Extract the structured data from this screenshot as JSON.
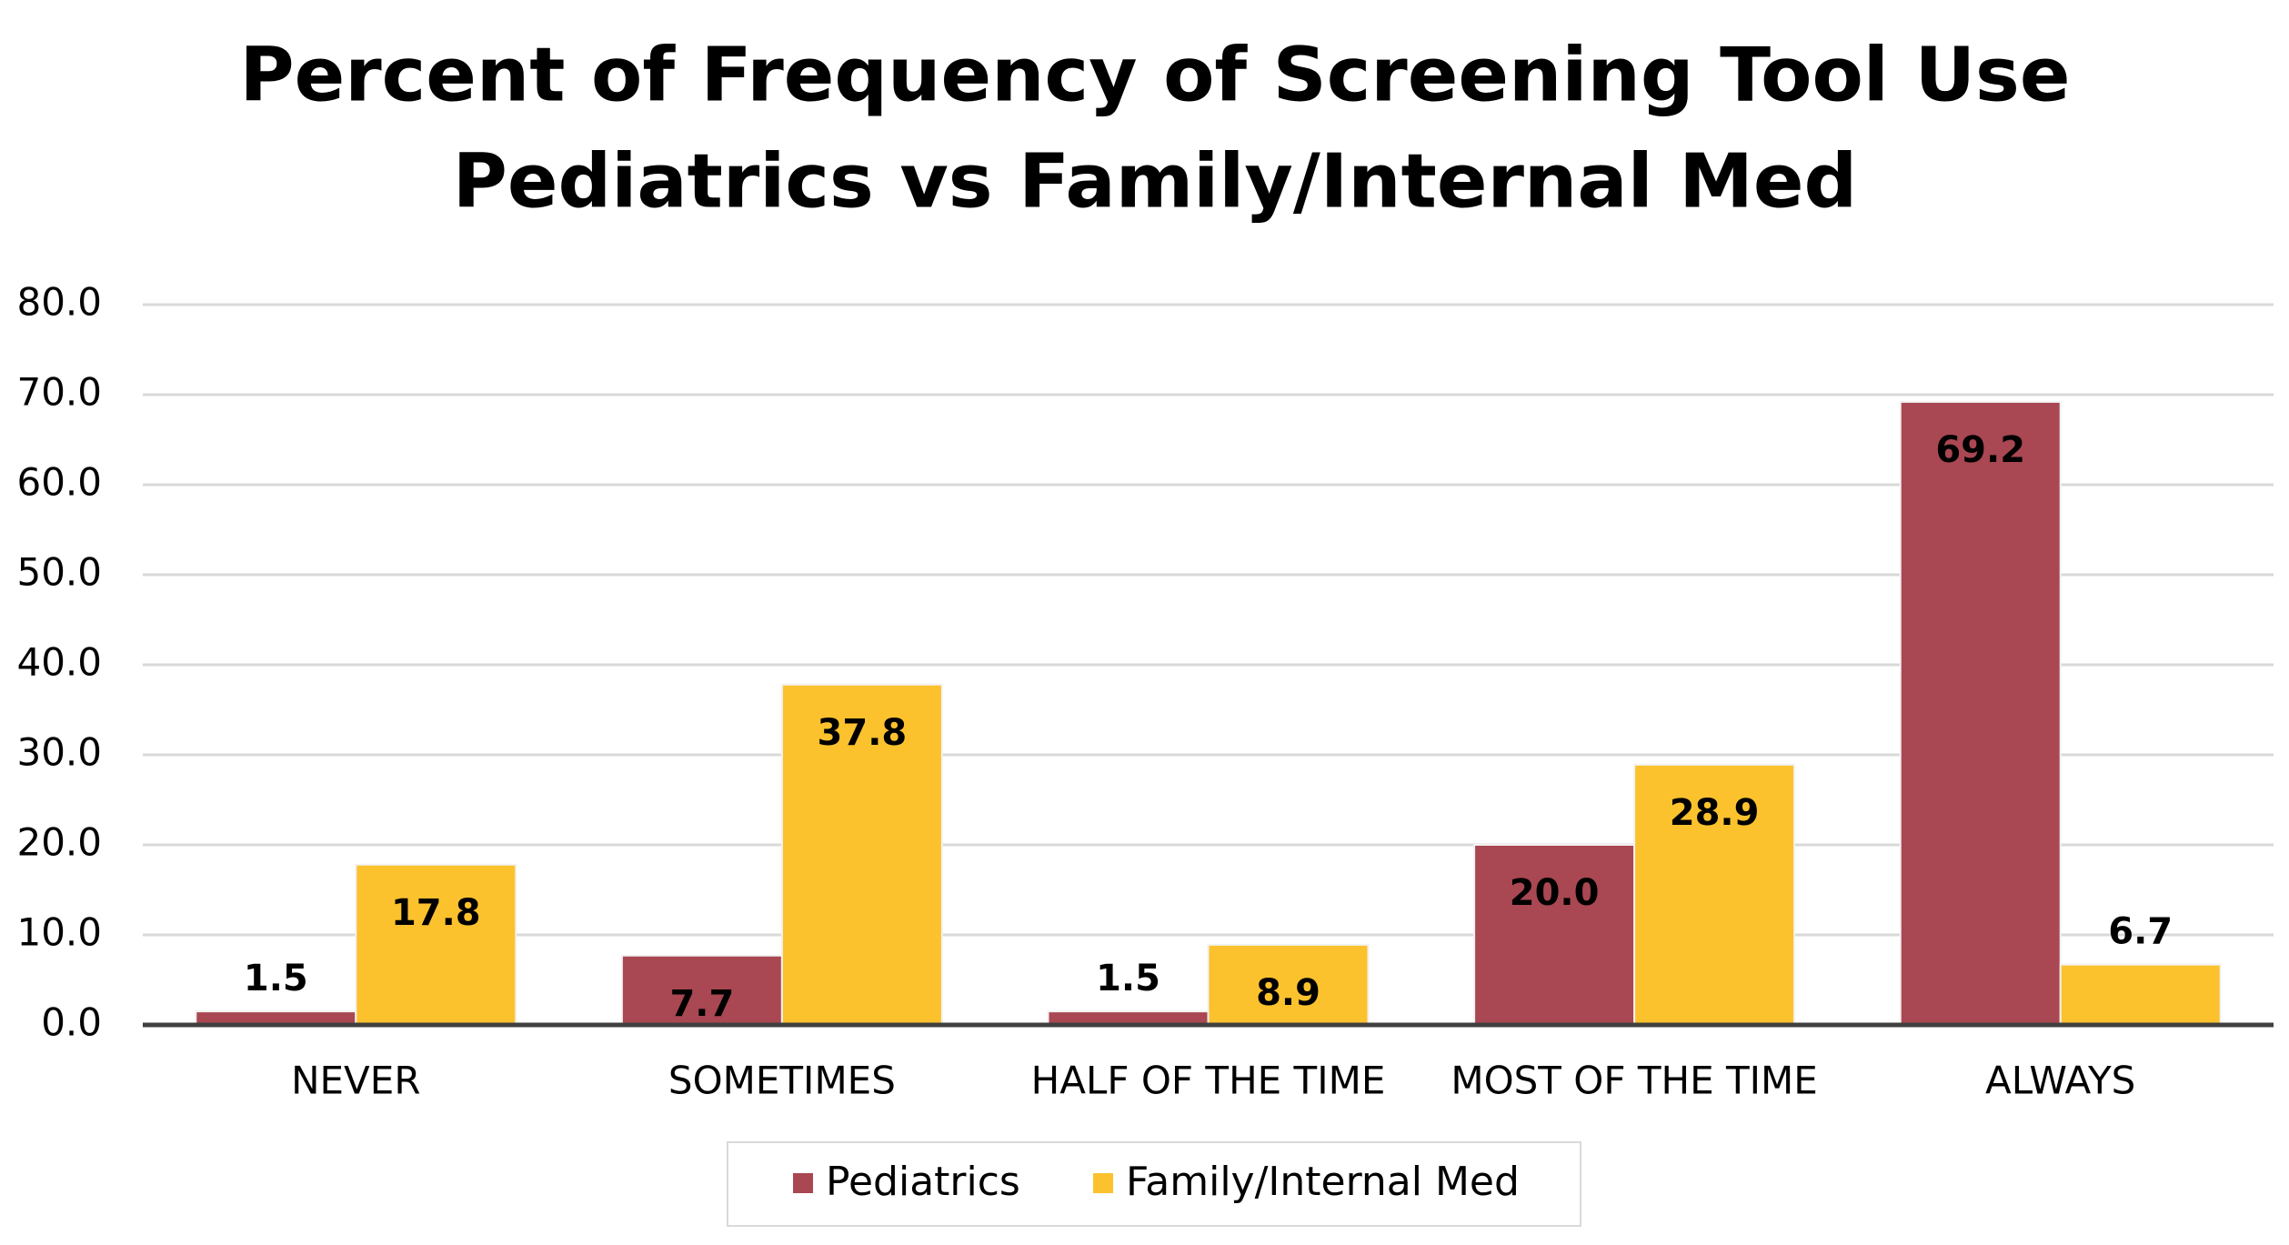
{
  "chart_data": {
    "type": "bar",
    "title": [
      "Percent of Frequency of Screening Tool Use",
      "Pediatrics vs Family/Internal Med"
    ],
    "categories": [
      "NEVER",
      "SOMETIMES",
      "HALF OF THE TIME",
      "MOST OF THE TIME",
      "ALWAYS"
    ],
    "series": [
      {
        "name": "Pediatrics",
        "color": "#a94752",
        "values": [
          1.5,
          7.7,
          1.5,
          20,
          69.2
        ],
        "value_labels": [
          "1.5",
          "7.7",
          "1.5",
          "20.0",
          "69.2"
        ]
      },
      {
        "name": "Family/Internal Med",
        "color": "#fcc22d",
        "values": [
          17.8,
          37.8,
          8.9,
          28.9,
          6.7
        ],
        "value_labels": [
          "17.8",
          "37.8",
          "8.9",
          "28.9",
          "6.7"
        ]
      }
    ],
    "ylim": [
      0,
      80
    ],
    "yticks": [
      {
        "value": 0,
        "label": "0.0"
      },
      {
        "value": 10,
        "label": "10.0"
      },
      {
        "value": 20,
        "label": "20.0"
      },
      {
        "value": 30,
        "label": "30.0"
      },
      {
        "value": 40,
        "label": "40.0"
      },
      {
        "value": 50,
        "label": "50.0"
      },
      {
        "value": 60,
        "label": "60.0"
      },
      {
        "value": 70,
        "label": "70.0"
      },
      {
        "value": 80,
        "label": "80.0"
      }
    ],
    "grid": true,
    "legend": "bottom"
  }
}
